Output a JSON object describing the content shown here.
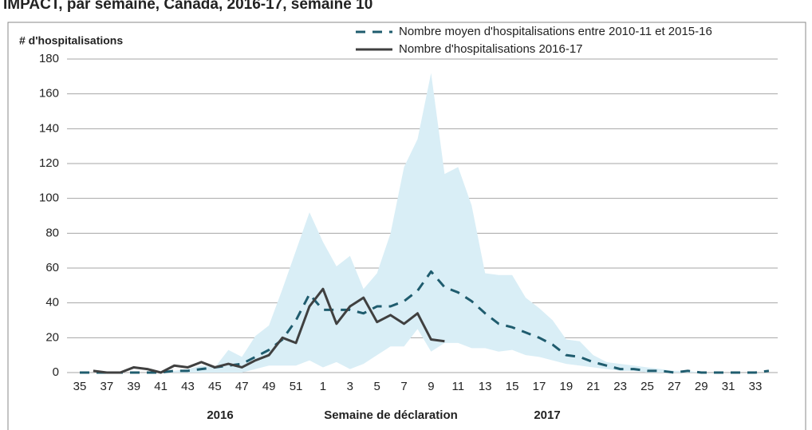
{
  "chart_data": {
    "type": "line",
    "title": "IMPACT, par semaine, Canada, 2016-17, semaine 10",
    "y_label": "# d'hospitalisations",
    "x_label": "Semaine de déclaration",
    "year_labels": [
      "2016",
      "2017"
    ],
    "categories": [
      "35",
      null,
      "37",
      null,
      "39",
      null,
      "41",
      null,
      "43",
      null,
      "45",
      null,
      "47",
      null,
      "49",
      null,
      "51",
      null,
      "1",
      null,
      "3",
      null,
      "5",
      null,
      "7",
      null,
      "9",
      null,
      "11",
      null,
      "13",
      null,
      "15",
      null,
      "17",
      null,
      "19",
      null,
      "21",
      null,
      "23",
      null,
      "25",
      null,
      "27",
      null,
      "29",
      null,
      "31",
      null,
      "33",
      null
    ],
    "range": {
      "color": "#d9eef6",
      "high": [
        0,
        0,
        0,
        0,
        0,
        0,
        0,
        1,
        2,
        4,
        3,
        13,
        9,
        21,
        27,
        48,
        70,
        92,
        75,
        61,
        67,
        48,
        57,
        80,
        118,
        134,
        172,
        114,
        118,
        96,
        57,
        56,
        56,
        43,
        37,
        30,
        19,
        18,
        10,
        6,
        5,
        4,
        3,
        2,
        1,
        1,
        0,
        0,
        0,
        0,
        0,
        0
      ],
      "low": [
        0,
        0,
        0,
        0,
        0,
        0,
        0,
        0,
        0,
        0,
        0,
        0,
        0,
        2,
        4,
        4,
        4,
        7,
        3,
        6,
        2,
        5,
        10,
        15,
        15,
        25,
        12,
        17,
        17,
        14,
        14,
        12,
        13,
        10,
        9,
        7,
        5,
        4,
        3,
        2,
        1,
        1,
        0,
        0,
        0,
        0,
        0,
        0,
        0,
        0,
        0,
        0
      ]
    },
    "series": [
      {
        "name": "Nombre moyen d'hospitalisations entre 2010-11 et 2015-16",
        "color": "#1f5c6e",
        "dashed": true,
        "values": [
          0,
          0,
          0,
          0,
          0,
          0,
          0,
          1,
          1,
          2,
          3,
          4,
          5,
          9,
          13,
          19,
          30,
          45,
          36,
          36,
          36,
          34,
          38,
          38,
          41,
          47,
          58,
          49,
          46,
          41,
          34,
          28,
          26,
          23,
          20,
          16,
          10,
          9,
          6,
          4,
          2,
          2,
          1,
          1,
          0,
          1,
          0,
          0,
          0,
          0,
          0,
          1
        ]
      },
      {
        "name": "Nombre d'hospitalisations 2016-17",
        "color": "#404040",
        "dashed": false,
        "values": [
          null,
          1,
          0,
          0,
          3,
          2,
          0,
          4,
          3,
          6,
          3,
          5,
          3,
          7,
          10,
          20,
          17,
          38,
          48,
          28,
          38,
          43,
          29,
          33,
          28,
          34,
          19,
          18,
          null,
          null,
          null,
          null,
          null,
          null,
          null,
          null,
          null,
          null,
          null,
          null,
          null,
          null,
          null,
          null,
          null,
          null,
          null,
          null,
          null,
          null,
          null,
          null
        ]
      }
    ],
    "ylim": [
      0,
      180
    ],
    "yticks": [
      0,
      20,
      40,
      60,
      80,
      100,
      120,
      140,
      160,
      180
    ],
    "grid": true
  }
}
